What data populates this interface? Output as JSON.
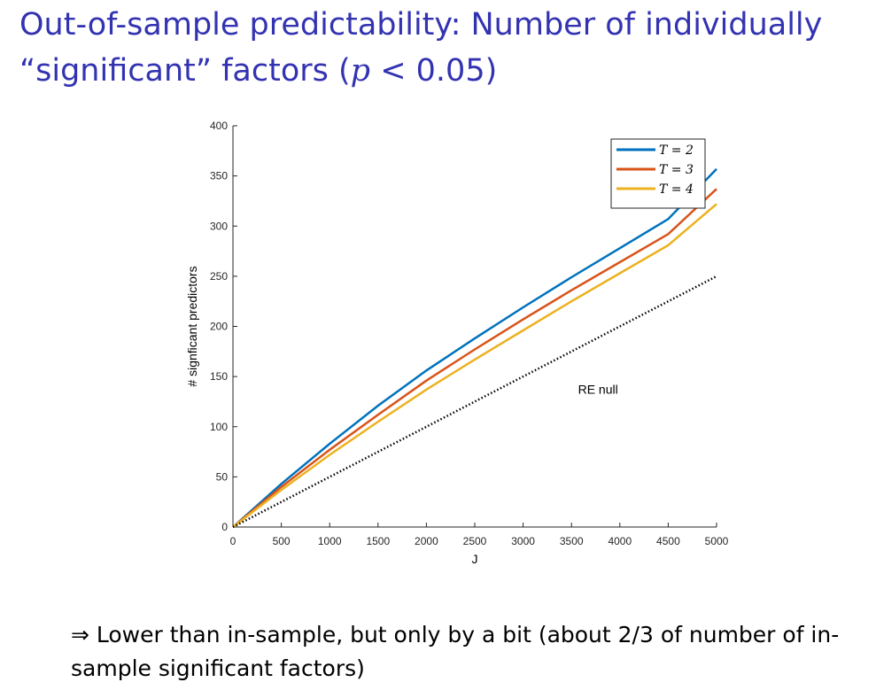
{
  "slide": {
    "title_line1": "Out-of-sample predictability: Number of individually",
    "title_line2_pre": "“significant” factors (",
    "title_line2_italic": "p",
    "title_line2_post": " < 0.05)",
    "footer": "⇒ Lower than in-sample, but only by a bit (about 2/3 of number of in-sample significant factors)"
  },
  "chart_data": {
    "type": "line",
    "xlabel": "J",
    "ylabel": "# signficant predictors",
    "xlim": [
      0,
      5000
    ],
    "ylim": [
      0,
      400
    ],
    "xticks": [
      0,
      500,
      1000,
      1500,
      2000,
      2500,
      3000,
      3500,
      4000,
      4500,
      5000
    ],
    "yticks": [
      0,
      50,
      100,
      150,
      200,
      250,
      300,
      350,
      400
    ],
    "legend_position": "top-right",
    "grid": false,
    "annotation": {
      "text": "RE null",
      "x": 3000,
      "y": 133
    },
    "x": [
      0,
      500,
      1000,
      1500,
      2000,
      2500,
      3000,
      3500,
      4000,
      4500,
      5000
    ],
    "series": [
      {
        "name": "T = 2",
        "color": "#0072bd",
        "style": "solid",
        "values": [
          0,
          43,
          83,
          121,
          156,
          188,
          219,
          249,
          278,
          307,
          357
        ]
      },
      {
        "name": "T = 3",
        "color": "#d95319",
        "style": "solid",
        "values": [
          0,
          40,
          77,
          112,
          146,
          177,
          207,
          236,
          264,
          292,
          337
        ]
      },
      {
        "name": "T = 4",
        "color": "#edb120",
        "style": "solid",
        "values": [
          0,
          37,
          72,
          105,
          137,
          167,
          196,
          225,
          253,
          281,
          322
        ]
      },
      {
        "name": "",
        "color": "#000000",
        "style": "dotted",
        "values": [
          0,
          25,
          50,
          75,
          100,
          125,
          150,
          175,
          200,
          225,
          250
        ]
      }
    ]
  }
}
